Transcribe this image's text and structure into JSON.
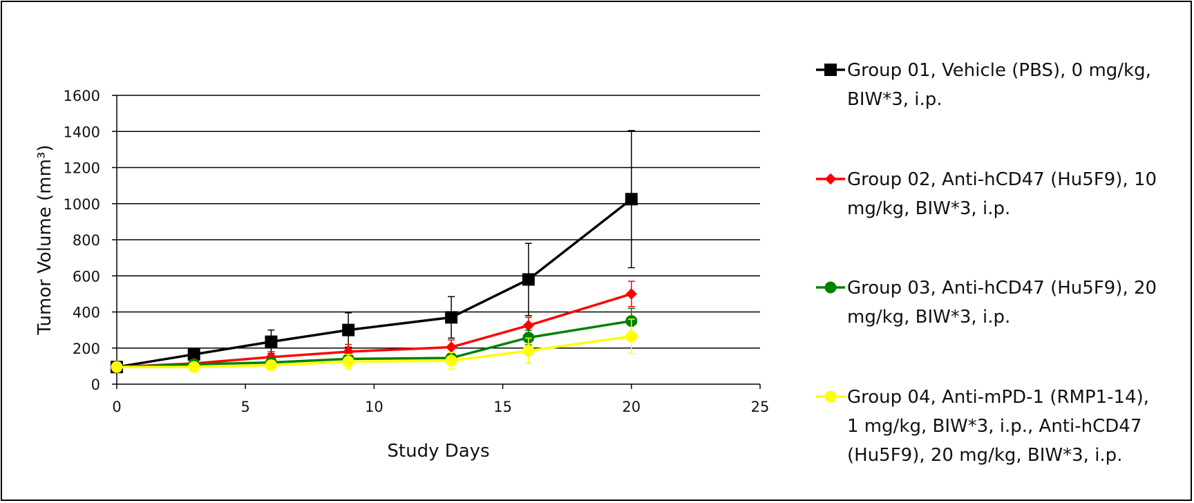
{
  "chart_data": {
    "type": "line",
    "title": "",
    "xlabel": "Study Days",
    "ylabel": "Tumor Volume (mm³)",
    "xlim": [
      0,
      25
    ],
    "ylim": [
      0,
      1600
    ],
    "xticks": [
      0,
      5,
      10,
      15,
      20,
      25
    ],
    "yticks": [
      0,
      200,
      400,
      600,
      800,
      1000,
      1200,
      1400,
      1600
    ],
    "x_tick_labels": [
      "0",
      "5",
      "10",
      "15",
      "20",
      "25"
    ],
    "y_tick_labels": [
      "0",
      "200",
      "400",
      "600",
      "800",
      "1000",
      "1200",
      "1400",
      "1600"
    ],
    "grid": "horizontal",
    "legend_position": "right",
    "x": [
      0,
      3,
      6,
      9,
      13,
      16,
      20
    ],
    "series": [
      {
        "name": "Group 01, Vehicle (PBS), 0 mg/kg, BIW*3, i.p.",
        "legend_lines": [
          "Group 01, Vehicle (PBS), 0 mg/kg,",
          "BIW*3, i.p."
        ],
        "color": "#000000",
        "marker": "square",
        "values": [
          95,
          165,
          235,
          300,
          370,
          580,
          1025
        ],
        "errors": [
          10,
          35,
          65,
          95,
          115,
          200,
          380
        ]
      },
      {
        "name": "Group 02, Anti-hCD47 (Hu5F9), 10 mg/kg, BIW*3, i.p.",
        "legend_lines": [
          "Group 02, Anti-hCD47 (Hu5F9), 10",
          "mg/kg, BIW*3, i.p."
        ],
        "color": "#ff0000",
        "marker": "diamond",
        "values": [
          95,
          115,
          150,
          180,
          205,
          325,
          500
        ],
        "errors": [
          10,
          20,
          30,
          40,
          40,
          45,
          70
        ]
      },
      {
        "name": "Group 03, Anti-hCD47 (Hu5F9), 20 mg/kg, BIW*3, i.p.",
        "legend_lines": [
          "Group 03, Anti-hCD47 (Hu5F9), 20",
          "mg/kg, BIW*3, i.p."
        ],
        "color": "#008000",
        "marker": "circle",
        "values": [
          95,
          110,
          120,
          140,
          145,
          258,
          350
        ],
        "errors": [
          10,
          15,
          20,
          25,
          30,
          40,
          70
        ]
      },
      {
        "name": "Group 04, Anti-mPD-1 (RMP1-14), 1 mg/kg, BIW*3, i.p., Anti-hCD47 (Hu5F9), 20 mg/kg, BIW*3, i.p.",
        "legend_lines": [
          "Group 04, Anti-mPD-1 (RMP1-14),",
          "1 mg/kg, BIW*3, i.p., Anti-hCD47",
          "(Hu5F9), 20 mg/kg, BIW*3, i.p."
        ],
        "color": "#ffff00",
        "marker": "circle",
        "values": [
          95,
          95,
          105,
          125,
          130,
          185,
          265
        ],
        "errors": [
          10,
          15,
          25,
          40,
          45,
          70,
          95
        ]
      }
    ]
  }
}
